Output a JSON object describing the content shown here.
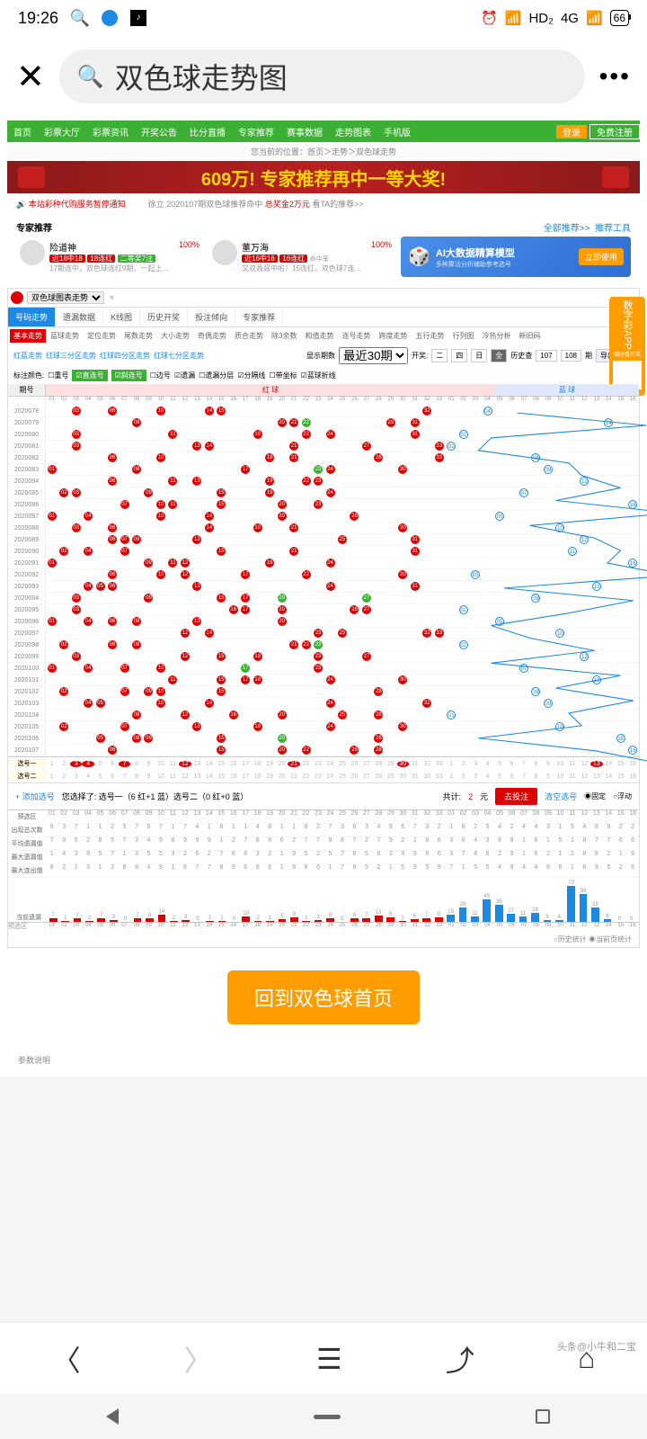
{
  "status": {
    "time": "19:26",
    "hd": "HD₂",
    "net": "4G",
    "battery": "66"
  },
  "search": {
    "text": "双色球走势图"
  },
  "nav": {
    "items": [
      "首页",
      "彩票大厅",
      "彩票资讯",
      "开奖公告",
      "比分直播",
      "专家推荐",
      "赛事数据",
      "走势图表",
      "手机版"
    ],
    "login": "登录",
    "register": "免费注册"
  },
  "breadcrumb": "您当前的位置：首页＞走势＞双色球走势",
  "banner": "609万! 专家推荐再中一等大奖!",
  "notice": {
    "left": "本站彩种代购服务暂停通知",
    "mid": "徐立 2020107期双色球推荐命中",
    "prize": "总奖金2万元",
    "right": "看TA的推荐>>"
  },
  "expert": {
    "title": "专家推荐",
    "all": "全部推荐>>",
    "tool": "推荐工具",
    "e1": {
      "name": "险道神",
      "pct": "100%",
      "t1": "近18中18",
      "t2": "18连红",
      "t3": "二等奖7注",
      "desc": "17期连中，双色球连红9期，一起上…"
    },
    "e2": {
      "name": "董万海",
      "pct": "100%",
      "sub": "命中率",
      "t1": "近16中16",
      "t2": "16连红",
      "desc": "又双叒叕中啦！15连红，双色球7连…"
    },
    "ai": {
      "title": "AI大数据精算模型",
      "sub": "多种算法分析辅助参考选号",
      "btn": "立即使用"
    }
  },
  "sidead": {
    "text": "数字彩APP",
    "sub": "随时看开奖"
  },
  "chart": {
    "dropdown": "双色球图表走势",
    "tabs": [
      "号码走势",
      "遗漏数据",
      "K线图",
      "历史开奖",
      "投注倾向",
      "专家推荐"
    ],
    "subtabs": [
      "基本走势",
      "蓝球走势",
      "定位走势",
      "尾数走势",
      "大小走势",
      "奇偶走势",
      "质合走势",
      "除3余数",
      "和值走势",
      "连号走势",
      "跨度走势",
      "五行走势",
      "行列图",
      "冷热分析",
      "新旧码"
    ],
    "filter": {
      "tabs": [
        "红蓝走势",
        "红球三分区走势",
        "红球四分区走势",
        "红球七分区走势"
      ],
      "show": "显示期数",
      "recent": "最近30期",
      "open": "开奖:",
      "hist": "历史查",
      "h1": "107",
      "h2": "108",
      "exp": "导出数据"
    },
    "marks": {
      "label": "标注颜色:",
      "items": [
        "重号",
        "直连号",
        "斜连号",
        "边号",
        "遗漏",
        "遗漏分层",
        "分隔线",
        "带坐标",
        "蓝球折线"
      ]
    },
    "redhdr": "红 球",
    "bluehdr": "蓝 球",
    "period": "期号",
    "periods": [
      "2020078",
      "2020079",
      "2020080",
      "2020081",
      "2020082",
      "2020083",
      "2020084",
      "2020085",
      "2020086",
      "2020087",
      "2020088",
      "2020089",
      "2020090",
      "2020091",
      "2020092",
      "2020093",
      "2020094",
      "2020095",
      "2020096",
      "2020097",
      "2020098",
      "2020099",
      "2020100",
      "2020101",
      "2020102",
      "2020103",
      "2020104",
      "2020105",
      "2020106",
      "2020107"
    ],
    "red_balls": [
      [
        3,
        6,
        10,
        14,
        15,
        32
      ],
      [
        8,
        20,
        21,
        22,
        29,
        31
      ],
      [
        3,
        11,
        18,
        22,
        24,
        31
      ],
      [
        3,
        13,
        14,
        21,
        27,
        33
      ],
      [
        6,
        10,
        19,
        21,
        28,
        33
      ],
      [
        1,
        8,
        17,
        23,
        24,
        30
      ],
      [
        6,
        11,
        13,
        19,
        22,
        23
      ],
      [
        2,
        3,
        9,
        15,
        19,
        24
      ],
      [
        7,
        10,
        11,
        15,
        20,
        23
      ],
      [
        1,
        4,
        10,
        14,
        20,
        26
      ],
      [
        3,
        6,
        14,
        18,
        21,
        30
      ],
      [
        6,
        7,
        8,
        13,
        25,
        31
      ],
      [
        2,
        4,
        7,
        15,
        21,
        31
      ],
      [
        1,
        9,
        11,
        12,
        19,
        24
      ],
      [
        6,
        10,
        12,
        17,
        22,
        30
      ],
      [
        4,
        5,
        6,
        13,
        24,
        31
      ],
      [
        3,
        9,
        15,
        17,
        20,
        27
      ],
      [
        3,
        16,
        17,
        20,
        26,
        27
      ],
      [
        1,
        4,
        6,
        8,
        13,
        20
      ],
      [
        12,
        14,
        23,
        25,
        32,
        33
      ],
      [
        2,
        6,
        8,
        21,
        22,
        23
      ],
      [
        3,
        12,
        15,
        18,
        23,
        27
      ],
      [
        1,
        4,
        7,
        10,
        17,
        23
      ],
      [
        11,
        15,
        17,
        18,
        24,
        30
      ],
      [
        2,
        7,
        9,
        10,
        15,
        28
      ],
      [
        4,
        5,
        10,
        14,
        24,
        32
      ],
      [
        8,
        12,
        16,
        20,
        25,
        28
      ],
      [
        2,
        7,
        13,
        18,
        24,
        30
      ],
      [
        5,
        8,
        9,
        15,
        20,
        28
      ],
      [
        6,
        15,
        20,
        22,
        26,
        28
      ]
    ],
    "green_cells": [
      [
        20,
        21,
        22
      ],
      [
        22
      ],
      [
        14
      ],
      [],
      [
        23,
        24
      ],
      [
        22,
        23
      ],
      [],
      [
        20
      ],
      [],
      [
        21
      ],
      [],
      [
        21
      ],
      [],
      [
        22
      ],
      [],
      [
        20
      ],
      [
        20,
        27
      ],
      [],
      [],
      [
        22
      ],
      [
        23
      ],
      [
        17
      ],
      [
        17,
        18
      ],
      [],
      [],
      [],
      [],
      [
        20
      ],
      [
        20,
        22
      ]
    ],
    "blue_balls": [
      4,
      14,
      2,
      1,
      8,
      9,
      12,
      7,
      16,
      5,
      10,
      12,
      11,
      16,
      3,
      13,
      8,
      2,
      5,
      10,
      2,
      12,
      7,
      13,
      8,
      9,
      1,
      10,
      15,
      16
    ],
    "pick": {
      "r1": "选号一",
      "r2": "选号二",
      "add": "+ 添加选号",
      "chose": "您选择了: 选号一（6 红+1 蓝）选号二（0 红+0 蓝）",
      "total": "共计:",
      "amt": "2",
      "yuan": "元",
      "bet": "去投注",
      "clear": "清空选号",
      "fixed": "固定",
      "float": "浮动"
    },
    "stats": {
      "labels": [
        "预选区",
        "出现总次数",
        "平均遗漏值",
        "最大遗漏值",
        "最大连出值"
      ],
      "bars_red": [
        7,
        1,
        7,
        2,
        7,
        3,
        0,
        7,
        8,
        14,
        2,
        3,
        0,
        1,
        1,
        0,
        10,
        2,
        1,
        5,
        9,
        1,
        3,
        8,
        0,
        8,
        7,
        13,
        9,
        1,
        6,
        7,
        9
      ],
      "bars_blue": [
        15,
        29,
        11,
        45,
        35,
        17,
        11,
        18,
        3,
        4,
        72,
        56,
        28,
        6,
        0,
        0
      ],
      "curr": "当前遗漏",
      "hist": "历史统计",
      "page": "当前页统计"
    }
  },
  "backbtn": "回到双色球首页",
  "param": "参数说明",
  "watermark": "头条@小牛和二宝"
}
